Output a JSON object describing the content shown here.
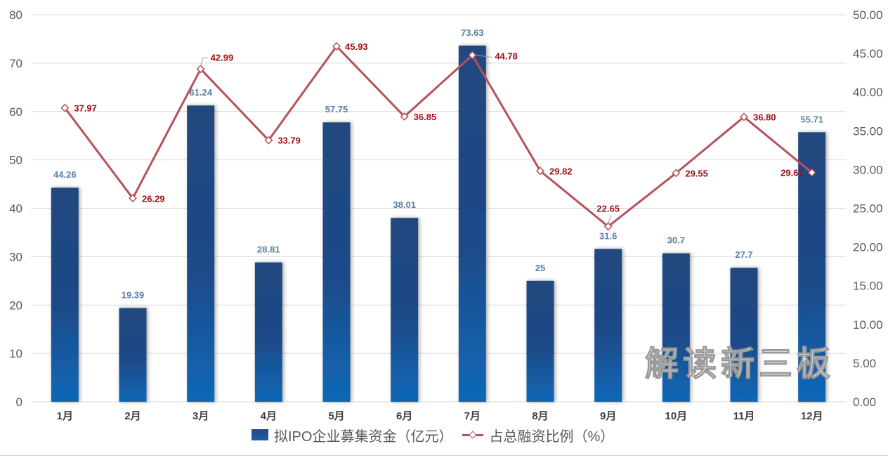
{
  "chart_data": {
    "type": "bar+line",
    "title": "",
    "categories": [
      "1月",
      "2月",
      "3月",
      "4月",
      "5月",
      "6月",
      "7月",
      "8月",
      "9月",
      "10月",
      "11月",
      "12月"
    ],
    "series": [
      {
        "name": "拟IPO企业募集资金（亿元）",
        "type": "bar",
        "axis": "left",
        "values": [
          44.26,
          19.39,
          61.24,
          28.81,
          57.75,
          38.01,
          73.63,
          25,
          31.6,
          30.7,
          27.7,
          55.71
        ],
        "labels": [
          "44.26",
          "19.39",
          "61.24",
          "28.81",
          "57.75",
          "38.01",
          "73.63",
          "25",
          "31.6",
          "30.7",
          "27.7",
          "55.71"
        ],
        "color": "#1f4a82"
      },
      {
        "name": "占总融资比例（%）",
        "type": "line",
        "axis": "right",
        "values": [
          37.97,
          26.29,
          42.99,
          33.79,
          45.93,
          36.85,
          44.78,
          29.82,
          22.65,
          29.55,
          36.8,
          29.61
        ],
        "labels": [
          "37.97",
          "26.29",
          "42.99",
          "33.79",
          "45.93",
          "36.85",
          "44.78",
          "29.82",
          "22.65",
          "29.55",
          "36.80",
          "29.61"
        ],
        "color": "#b5525a"
      }
    ],
    "ylim_left": [
      0,
      80
    ],
    "yticks_left": [
      "0",
      "10",
      "20",
      "30",
      "40",
      "50",
      "60",
      "70",
      "80"
    ],
    "ylim_right": [
      0,
      50
    ],
    "yticks_right": [
      "0.00",
      "5.00",
      "10.00",
      "15.00",
      "20.00",
      "25.00",
      "30.00",
      "35.00",
      "40.00",
      "45.00",
      "50.00"
    ],
    "xlabel": "",
    "ylabel": "",
    "grid": true,
    "legend_position": "bottom"
  },
  "legend": {
    "bar_label": "拟IPO企业募集资金（亿元）",
    "line_label": "占总融资比例（%）"
  },
  "watermark": "解读新三板"
}
